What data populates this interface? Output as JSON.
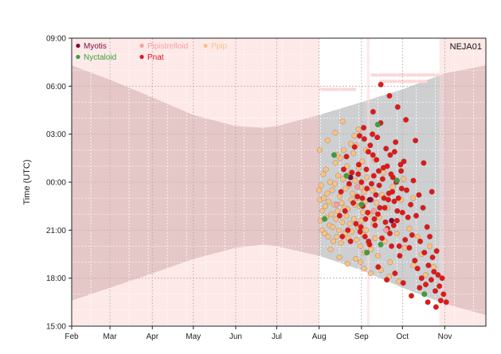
{
  "chart_data": {
    "type": "scatter",
    "title": "",
    "panel_label": "NEJA01",
    "ylabel": "Time (UTC)",
    "xlabel": "",
    "x_ticks": [
      {
        "label": "Feb",
        "doy": 32
      },
      {
        "label": "Mar",
        "doy": 60
      },
      {
        "label": "Apr",
        "doy": 91
      },
      {
        "label": "May",
        "doy": 121
      },
      {
        "label": "Jun",
        "doy": 152
      },
      {
        "label": "Jul",
        "doy": 182
      },
      {
        "label": "Aug",
        "doy": 213
      },
      {
        "label": "Sep",
        "doy": 244
      },
      {
        "label": "Oct",
        "doy": 274
      },
      {
        "label": "Nov",
        "doy": 305
      }
    ],
    "xlim_doy": [
      32,
      335
    ],
    "y_ticks": [
      {
        "label": "15:00",
        "v": 15
      },
      {
        "label": "18:00",
        "v": 18
      },
      {
        "label": "21:00",
        "v": 21
      },
      {
        "label": "00:00",
        "v": 24
      },
      {
        "label": "03:00",
        "v": 27
      },
      {
        "label": "06:00",
        "v": 30
      },
      {
        "label": "09:00",
        "v": 33
      }
    ],
    "ylim": [
      15,
      33
    ],
    "grid": true,
    "legend": {
      "placement": "top-left",
      "entries": [
        {
          "name": "Myotis",
          "color": "#7a0a3a"
        },
        {
          "name": "Pipistrelloid",
          "color": "#f4a0a0"
        },
        {
          "name": "Ppip",
          "color": "#f8c282"
        },
        {
          "name": "Nyctaloid",
          "color": "#3aa03a"
        },
        {
          "name": "Pnat",
          "color": "#e01818"
        }
      ]
    },
    "night_band": {
      "fill": "#c8b4b4",
      "recording_fill": "#cdcfd1",
      "recording_doy": [
        213,
        305
      ],
      "sunset": [
        [
          32,
          16.6
        ],
        [
          60,
          17.4
        ],
        [
          91,
          18.3
        ],
        [
          121,
          19.2
        ],
        [
          152,
          19.9
        ],
        [
          172,
          20.1
        ],
        [
          182,
          20.0
        ],
        [
          213,
          19.4
        ],
        [
          244,
          18.5
        ],
        [
          274,
          17.4
        ],
        [
          305,
          16.4
        ],
        [
          335,
          15.7
        ]
      ],
      "sunrise": [
        [
          32,
          31.3
        ],
        [
          60,
          30.4
        ],
        [
          91,
          29.3
        ],
        [
          121,
          28.2
        ],
        [
          152,
          27.5
        ],
        [
          172,
          27.4
        ],
        [
          182,
          27.5
        ],
        [
          213,
          28.2
        ],
        [
          244,
          29.0
        ],
        [
          274,
          29.8
        ],
        [
          305,
          30.8
        ],
        [
          335,
          31.3
        ]
      ]
    },
    "pink_fill": "#fdd7d7",
    "no_record_periods": [
      [
        32,
        213
      ],
      [
        248,
        250
      ],
      [
        301,
        335
      ]
    ],
    "no_record_bars": [
      {
        "doy": [
          213,
          240
        ],
        "v": 29.8
      },
      {
        "doy": [
          251,
          301
        ],
        "v": 30.7
      },
      {
        "doy": [
          257,
          292
        ],
        "v": 30.3
      }
    ],
    "series": [
      {
        "name": "Ppip",
        "color": "#f8c282",
        "points": [
          [
            213,
            23.5
          ],
          [
            213.6,
            22.9
          ],
          [
            214,
            21.6
          ],
          [
            214.4,
            23.8
          ],
          [
            215,
            21.0
          ],
          [
            215.3,
            22.2
          ],
          [
            216,
            24.5
          ],
          [
            216.5,
            23.0
          ],
          [
            217,
            20.8
          ],
          [
            217.6,
            22.5
          ],
          [
            218,
            24.8
          ],
          [
            218.3,
            21.8
          ],
          [
            219,
            23.3
          ],
          [
            219.6,
            20.6
          ],
          [
            220,
            22.8
          ],
          [
            220.5,
            21.3
          ],
          [
            221,
            24.0
          ],
          [
            221.4,
            19.8
          ],
          [
            222,
            22.0
          ],
          [
            222.6,
            23.5
          ],
          [
            223,
            21.2
          ],
          [
            223.5,
            20.3
          ],
          [
            224,
            22.6
          ],
          [
            224.5,
            23.9
          ],
          [
            225,
            25.2
          ],
          [
            225.3,
            21.7
          ],
          [
            226,
            20.6
          ],
          [
            226.5,
            22.2
          ],
          [
            227,
            24.4
          ],
          [
            227.5,
            21.0
          ],
          [
            228,
            23.1
          ],
          [
            228.5,
            25.5
          ],
          [
            229,
            20.2
          ],
          [
            229.5,
            22.7
          ],
          [
            230,
            21.5
          ],
          [
            230.5,
            24.2
          ],
          [
            231,
            26.0
          ],
          [
            231.5,
            22.4
          ],
          [
            232,
            20.8
          ],
          [
            232.5,
            23.6
          ],
          [
            233,
            21.9
          ],
          [
            233.5,
            25.0
          ],
          [
            234,
            22.3
          ],
          [
            234.5,
            20.5
          ],
          [
            235,
            23.8
          ],
          [
            235.5,
            21.4
          ],
          [
            236,
            24.6
          ],
          [
            236.5,
            22.9
          ],
          [
            237,
            20.9
          ],
          [
            237.5,
            23.3
          ],
          [
            238,
            25.8
          ],
          [
            238.5,
            21.7
          ],
          [
            239,
            22.6
          ],
          [
            239.5,
            24.1
          ],
          [
            240,
            26.3
          ],
          [
            240.5,
            20.4
          ],
          [
            241,
            23.0
          ],
          [
            241.5,
            21.2
          ],
          [
            242,
            24.9
          ],
          [
            242.5,
            22.5
          ],
          [
            243,
            20.0
          ],
          [
            243.5,
            23.7
          ],
          [
            244,
            21.6
          ],
          [
            244.5,
            25.3
          ],
          [
            245,
            22.1
          ],
          [
            245.5,
            20.7
          ],
          [
            246,
            23.4
          ],
          [
            246.5,
            19.6
          ],
          [
            247,
            22.8
          ],
          [
            247.5,
            21.0
          ],
          [
            248,
            24.3
          ],
          [
            249,
            20.2
          ],
          [
            250,
            22.0
          ],
          [
            251,
            19.8
          ],
          [
            252,
            23.5
          ],
          [
            253,
            21.4
          ],
          [
            254,
            20.5
          ],
          [
            255,
            22.7
          ],
          [
            256,
            19.4
          ],
          [
            257,
            21.8
          ],
          [
            259,
            23.2
          ],
          [
            261,
            20.3
          ],
          [
            263,
            22.4
          ],
          [
            265,
            19.0
          ],
          [
            267,
            21.5
          ],
          [
            270,
            20.8
          ],
          [
            273,
            22.9
          ],
          [
            276,
            19.9
          ],
          [
            279,
            21.1
          ],
          [
            282,
            18.8
          ],
          [
            285,
            20.6
          ],
          [
            288,
            19.5
          ],
          [
            291,
            18.2
          ],
          [
            294,
            20.0
          ],
          [
            297,
            18.7
          ],
          [
            213.5,
            26.0
          ],
          [
            219.2,
            26.6
          ],
          [
            224.8,
            27.1
          ],
          [
            230.2,
            27.8
          ],
          [
            236.2,
            26.4
          ],
          [
            241.8,
            27.3
          ],
          [
            247.2,
            26.0
          ],
          [
            227.8,
            19.3
          ],
          [
            233.8,
            18.9
          ],
          [
            239.8,
            19.2
          ],
          [
            245.8,
            18.6
          ],
          [
            250.8,
            18.3
          ],
          [
            258.2,
            18.5
          ],
          [
            264.2,
            18.1
          ],
          [
            271.2,
            17.8
          ],
          [
            226.2,
            25.7
          ],
          [
            238.8,
            26.9
          ],
          [
            243.2,
            19.0
          ],
          [
            253.8,
            25.4
          ],
          [
            260.2,
            24.6
          ],
          [
            266.8,
            23.7
          ],
          [
            274.8,
            24.2
          ],
          [
            281.8,
            23.0
          ]
        ]
      },
      {
        "name": "Pnat",
        "color": "#e01818",
        "points": [
          [
            228,
            21.9
          ],
          [
            229,
            23.4
          ],
          [
            230,
            20.6
          ],
          [
            231,
            24.8
          ],
          [
            232,
            22.2
          ],
          [
            233,
            25.6
          ],
          [
            234,
            21.0
          ],
          [
            235,
            23.9
          ],
          [
            236,
            20.3
          ],
          [
            237,
            24.6
          ],
          [
            238,
            22.7
          ],
          [
            239,
            26.2
          ],
          [
            240,
            21.4
          ],
          [
            241,
            23.1
          ],
          [
            242,
            25.1
          ],
          [
            243,
            20.9
          ],
          [
            244,
            24.0
          ],
          [
            245,
            22.5
          ],
          [
            246,
            26.7
          ],
          [
            247,
            21.7
          ],
          [
            248,
            23.6
          ],
          [
            249,
            25.9
          ],
          [
            250,
            20.1
          ],
          [
            251,
            22.9
          ],
          [
            252,
            27.0
          ],
          [
            253,
            24.4
          ],
          [
            254,
            21.3
          ],
          [
            255,
            25.4
          ],
          [
            256,
            22.0
          ],
          [
            257,
            23.8
          ],
          [
            258,
            27.7
          ],
          [
            259,
            20.5
          ],
          [
            260,
            24.9
          ],
          [
            261,
            22.4
          ],
          [
            262,
            26.1
          ],
          [
            263,
            21.1
          ],
          [
            264,
            23.3
          ],
          [
            265,
            25.7
          ],
          [
            266,
            20.0
          ],
          [
            267,
            24.3
          ],
          [
            268,
            22.8
          ],
          [
            269,
            26.5
          ],
          [
            270,
            21.6
          ],
          [
            271,
            23.0
          ],
          [
            272,
            19.4
          ],
          [
            273,
            24.7
          ],
          [
            274,
            22.1
          ],
          [
            275,
            25.3
          ],
          [
            276,
            20.4
          ],
          [
            277,
            23.5
          ],
          [
            278,
            21.8
          ],
          [
            279,
            19.9
          ],
          [
            280,
            22.6
          ],
          [
            281,
            20.7
          ],
          [
            282,
            24.1
          ],
          [
            283,
            19.1
          ],
          [
            284,
            21.9
          ],
          [
            285,
            18.6
          ],
          [
            286,
            23.2
          ],
          [
            287,
            20.3
          ],
          [
            288,
            18.0
          ],
          [
            289,
            22.4
          ],
          [
            290,
            19.6
          ],
          [
            291,
            17.6
          ],
          [
            292,
            21.2
          ],
          [
            293,
            18.8
          ],
          [
            294,
            20.6
          ],
          [
            295,
            17.9
          ],
          [
            296,
            19.3
          ],
          [
            297,
            18.4
          ],
          [
            298,
            17.2
          ],
          [
            299,
            19.7
          ],
          [
            300,
            18.2
          ],
          [
            301,
            17.5
          ],
          [
            302,
            16.6
          ],
          [
            303,
            18.0
          ],
          [
            304,
            17.0
          ],
          [
            306,
            16.5
          ],
          [
            258.2,
            30.1
          ],
          [
            264.5,
            29.4
          ],
          [
            252.5,
            28.4
          ],
          [
            270.5,
            28.7
          ],
          [
            276.5,
            27.9
          ],
          [
            283.5,
            26.6
          ],
          [
            289.5,
            25.2
          ],
          [
            295.5,
            23.4
          ],
          [
            249.2,
            20.3
          ],
          [
            256.2,
            18.7
          ],
          [
            262.5,
            17.9
          ],
          [
            268.5,
            18.3
          ],
          [
            274.5,
            17.7
          ],
          [
            280.5,
            16.9
          ],
          [
            286.5,
            17.4
          ],
          [
            292.5,
            16.5
          ],
          [
            298.5,
            16.2
          ],
          [
            259.5,
            24.2
          ],
          [
            260.5,
            23.0
          ],
          [
            261.5,
            21.5
          ],
          [
            262.8,
            25.0
          ],
          [
            263.6,
            22.9
          ],
          [
            264.8,
            20.8
          ],
          [
            265.6,
            24.5
          ],
          [
            266.6,
            23.4
          ],
          [
            267.6,
            21.3
          ],
          [
            268.2,
            25.9
          ],
          [
            269.4,
            24.0
          ],
          [
            270.2,
            22.2
          ],
          [
            271.6,
            20.0
          ],
          [
            272.6,
            25.1
          ],
          [
            273.4,
            23.6
          ],
          [
            257.4,
            22.4
          ],
          [
            256.6,
            24.7
          ],
          [
            255.6,
            26.8
          ],
          [
            254.6,
            23.2
          ],
          [
            253.4,
            21.7
          ],
          [
            252.4,
            25.7
          ],
          [
            251.4,
            23.9
          ],
          [
            250.4,
            26.3
          ],
          [
            248.6,
            22.1
          ],
          [
            247.6,
            24.8
          ],
          [
            246.6,
            20.6
          ],
          [
            245.6,
            27.4
          ],
          [
            244.6,
            23.0
          ],
          [
            243.6,
            21.2
          ],
          [
            242.6,
            26.9
          ],
          [
            241.6,
            24.5
          ]
        ]
      },
      {
        "name": "Pipistrelloid",
        "color": "#f4a0a0",
        "points": [
          [
            226,
            22.6
          ],
          [
            241,
            23.7
          ],
          [
            253,
            22.2
          ],
          [
            262,
            21.0
          ]
        ]
      },
      {
        "name": "Myotis",
        "color": "#7a0a3a",
        "points": [
          [
            236,
            24.3
          ],
          [
            250,
            22.9
          ],
          [
            266,
            21.6
          ]
        ]
      },
      {
        "name": "Nyctaloid",
        "color": "#3aa03a",
        "points": [
          [
            217,
            21.7
          ],
          [
            224,
            25.7
          ],
          [
            233,
            24.4
          ],
          [
            248,
            19.6
          ],
          [
            256,
            27.6
          ],
          [
            270,
            24.1
          ],
          [
            290,
            17.0
          ],
          [
            244,
            22.6
          ],
          [
            258,
            20.1
          ]
        ]
      }
    ]
  }
}
